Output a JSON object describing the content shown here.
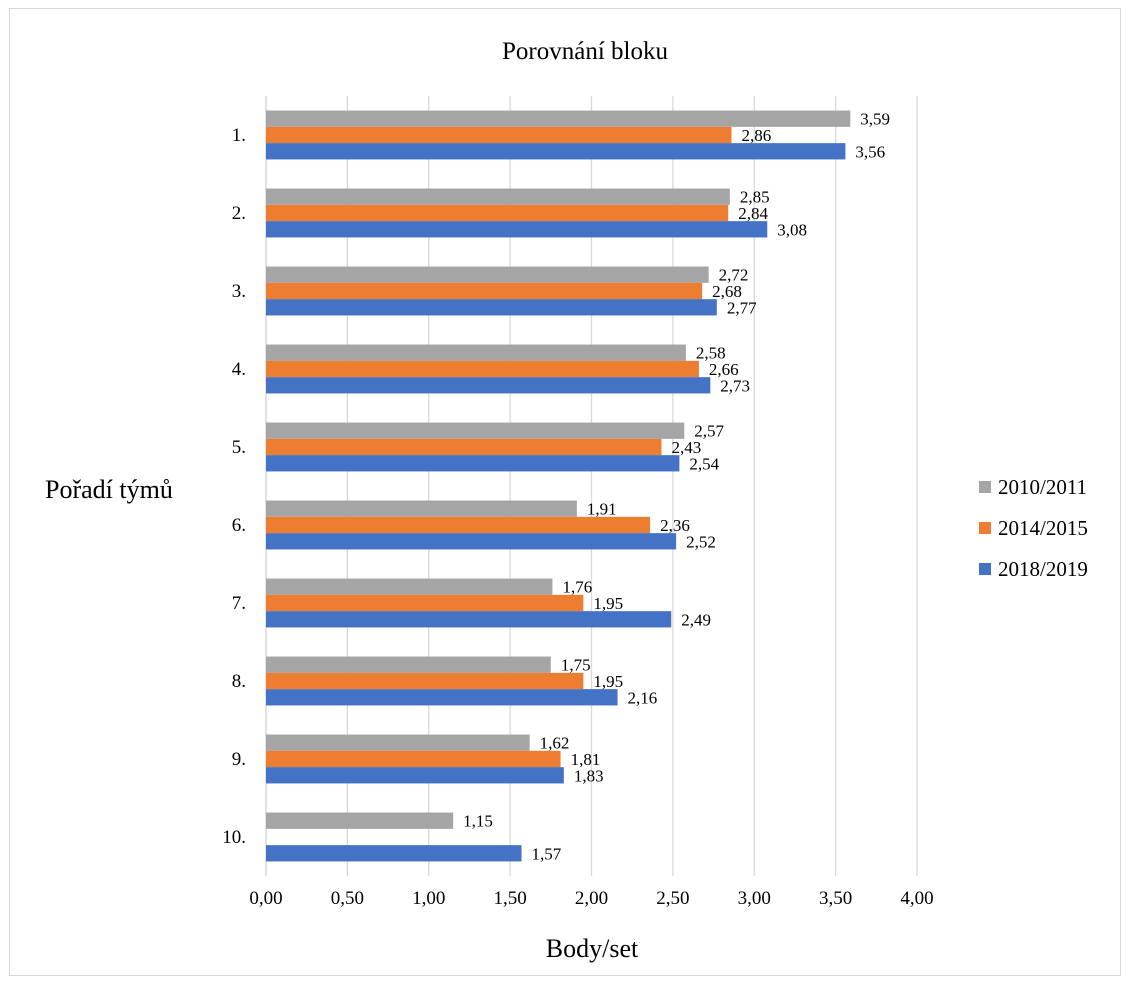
{
  "chart_data": {
    "type": "bar",
    "orientation": "horizontal",
    "title": "Porovnání bloku",
    "xlabel": "Body/set",
    "ylabel": "Pořadí týmů",
    "categories": [
      "1.",
      "2.",
      "3.",
      "4.",
      "5.",
      "6.",
      "7.",
      "8.",
      "9.",
      "10."
    ],
    "xlim": [
      0,
      4
    ],
    "xticks": [
      "0,00",
      "0,50",
      "1,00",
      "1,50",
      "2,00",
      "2,50",
      "3,00",
      "3,50",
      "4,00"
    ],
    "xtick_values": [
      0,
      0.5,
      1,
      1.5,
      2,
      2.5,
      3,
      3.5,
      4
    ],
    "grid": "vertical",
    "legend_position": "right",
    "series": [
      {
        "name": "2010/2011",
        "color": "#a5a5a5",
        "values": [
          3.59,
          2.85,
          2.72,
          2.58,
          2.57,
          1.91,
          1.76,
          1.75,
          1.62,
          1.15
        ],
        "labels": [
          "3,59",
          "2,85",
          "2,72",
          "2,58",
          "2,57",
          "1,91",
          "1,76",
          "1,75",
          "1,62",
          "1,15"
        ]
      },
      {
        "name": "2014/2015",
        "color": "#ed7d31",
        "values": [
          2.86,
          2.84,
          2.68,
          2.66,
          2.43,
          2.36,
          1.95,
          1.95,
          1.81,
          null
        ],
        "labels": [
          "2,86",
          "2,84",
          "2,68",
          "2,66",
          "2,43",
          "2,36",
          "1,95",
          "1,95",
          "1,81",
          null
        ]
      },
      {
        "name": "2018/2019",
        "color": "#4472c4",
        "values": [
          3.56,
          3.08,
          2.77,
          2.73,
          2.54,
          2.52,
          2.49,
          2.16,
          1.83,
          1.57
        ],
        "labels": [
          "3,56",
          "3,08",
          "2,77",
          "2,73",
          "2,54",
          "2,52",
          "2,49",
          "2,16",
          "1,83",
          "1,57"
        ]
      }
    ]
  }
}
